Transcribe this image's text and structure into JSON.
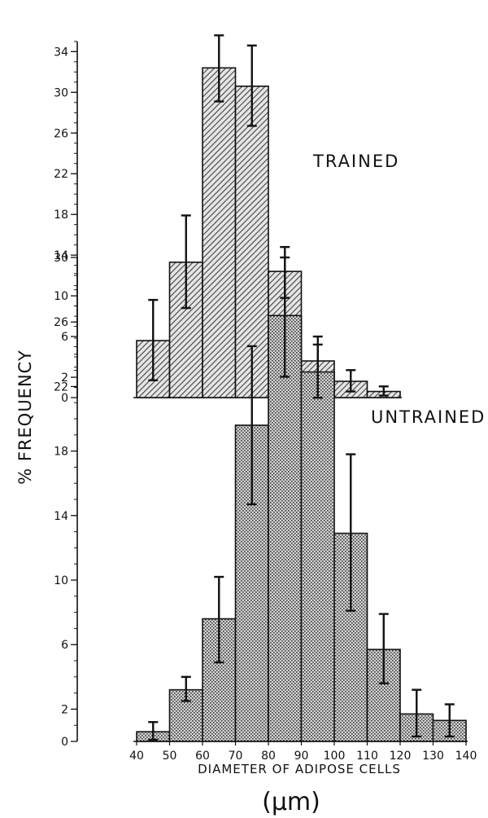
{
  "figure": {
    "ylabel": "% FREQUENCY",
    "xlabel": "DIAMETER OF ADIPOSE CELLS",
    "unit": "(μm)"
  },
  "chart_data": [
    {
      "type": "bar",
      "title": "TRAINED",
      "xlabel": "DIAMETER OF ADIPOSE CELLS",
      "ylabel": "% FREQUENCY",
      "ylim": [
        0,
        35
      ],
      "yticks": [
        "0",
        "2",
        "6",
        "10",
        "14",
        "18",
        "22",
        "26",
        "30",
        "34"
      ],
      "bin_edges": [
        40,
        50,
        60,
        70,
        80,
        90,
        100,
        110,
        120
      ],
      "values": [
        5.6,
        13.3,
        32.4,
        30.6,
        12.4,
        3.6,
        1.6,
        0.6
      ],
      "errors_plus": [
        4.0,
        4.6,
        3.2,
        4.0,
        2.4,
        2.4,
        1.1,
        0.5
      ],
      "errors_minus": [
        3.9,
        4.5,
        3.3,
        3.9,
        2.6,
        2.2,
        1.0,
        0.4
      ],
      "fill_pattern": "diagonal-hatch",
      "grid": false
    },
    {
      "type": "bar",
      "title": "UNTRAINED",
      "xlabel": "DIAMETER OF ADIPOSE CELLS",
      "ylabel": "% FREQUENCY",
      "ylim": [
        0,
        30
      ],
      "yticks": [
        "0",
        "2",
        "6",
        "10",
        "14",
        "18",
        "22",
        "26",
        "30"
      ],
      "xticks": [
        "40",
        "50",
        "60",
        "70",
        "80",
        "90",
        "100",
        "110",
        "120",
        "130",
        "140"
      ],
      "bin_edges": [
        40,
        50,
        60,
        70,
        80,
        90,
        100,
        110,
        120,
        130,
        140
      ],
      "values": [
        0.6,
        3.2,
        7.6,
        19.6,
        26.4,
        22.9,
        12.9,
        5.7,
        1.7,
        1.3
      ],
      "errors_plus": [
        0.6,
        0.8,
        2.6,
        4.9,
        3.6,
        1.7,
        4.9,
        2.2,
        1.5,
        1.0
      ],
      "errors_minus": [
        0.5,
        0.7,
        2.7,
        4.9,
        3.8,
        1.6,
        4.8,
        2.1,
        1.4,
        1.0
      ],
      "fill_pattern": "stipple",
      "grid": false
    }
  ]
}
